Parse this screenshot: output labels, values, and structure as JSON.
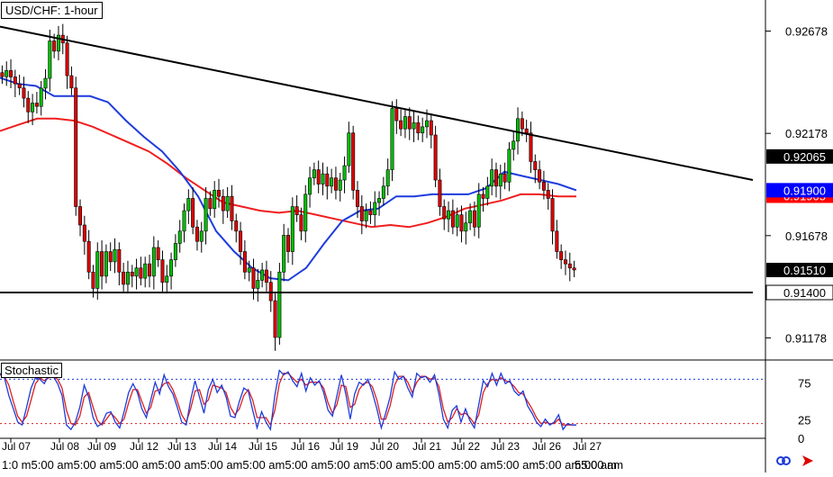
{
  "chart_data": [
    {
      "type": "candlestick",
      "title": "USD/CHF: 1-hour",
      "y_ticks": [
        "0.92678",
        "0.92178",
        "0.91678",
        "0.91178"
      ],
      "price_tags": [
        {
          "label": "0.92065",
          "value": 0.92065,
          "bg": "#000000"
        },
        {
          "label": "0.91905",
          "value": 0.91873,
          "bg": "#ff0000"
        },
        {
          "label": "0.91900",
          "value": 0.919,
          "bg": "#0000ff"
        },
        {
          "label": "0.91510",
          "value": 0.9151,
          "bg": "#000000"
        },
        {
          "label": "0.91400",
          "value": 0.914,
          "bg": "#ffffff"
        }
      ],
      "ylim": [
        0.9107,
        0.9283
      ],
      "x_labels": [
        "Jul 07",
        "Jul 08",
        "Jul 09",
        "Jul 12",
        "Jul 13",
        "Jul 14",
        "Jul 15",
        "Jul 16",
        "Jul 19",
        "Jul 20",
        "Jul 21",
        "Jul 22",
        "Jul 23",
        "Jul 26",
        "Jul 27"
      ],
      "candle_closes": [
        0.92455,
        0.92485,
        0.92454,
        0.9242,
        0.924,
        0.9235,
        0.92283,
        0.92326,
        0.9231,
        0.92399,
        0.92447,
        0.9263,
        0.9258,
        0.92658,
        0.9262,
        0.9246,
        0.924,
        0.9182,
        0.9173,
        0.9165,
        0.915,
        0.9142,
        0.916,
        0.9148,
        0.916,
        0.9155,
        0.9161,
        0.915,
        0.9144,
        0.915,
        0.9148,
        0.9152,
        0.9147,
        0.9154,
        0.9148,
        0.9162,
        0.9156,
        0.9145,
        0.9148,
        0.9156,
        0.9164,
        0.917,
        0.918,
        0.9186,
        0.9172,
        0.9165,
        0.917,
        0.9186,
        0.9181,
        0.919,
        0.9187,
        0.918,
        0.9187,
        0.9175,
        0.917,
        0.916,
        0.915,
        0.9152,
        0.9142,
        0.9146,
        0.9151,
        0.9145,
        0.9136,
        0.9118,
        0.915,
        0.9168,
        0.916,
        0.9182,
        0.9178,
        0.917,
        0.9188,
        0.9196,
        0.92,
        0.9193,
        0.9198,
        0.9192,
        0.9196,
        0.919,
        0.9195,
        0.9202,
        0.9218,
        0.919,
        0.9182,
        0.9175,
        0.918,
        0.9178,
        0.9184,
        0.9186,
        0.9192,
        0.92,
        0.923,
        0.9224,
        0.922,
        0.9226,
        0.922,
        0.9223,
        0.9218,
        0.9221,
        0.9224,
        0.9217,
        0.9195,
        0.9182,
        0.9176,
        0.918,
        0.9172,
        0.9178,
        0.917,
        0.9174,
        0.918,
        0.9172,
        0.9188,
        0.9186,
        0.9192,
        0.92,
        0.9192,
        0.9198,
        0.9194,
        0.921,
        0.9214,
        0.9225,
        0.922,
        0.9218,
        0.9204,
        0.92,
        0.9194,
        0.919,
        0.9186,
        0.917,
        0.916,
        0.9156,
        0.9154,
        0.9152,
        0.9151
      ],
      "ema_blue": [
        0.9245,
        0.9242,
        0.9241,
        0.9236,
        0.9236,
        0.9236,
        0.9233,
        0.9224,
        0.9216,
        0.9209,
        0.9199,
        0.9187,
        0.917,
        0.916,
        0.9152,
        0.9147,
        0.9146,
        0.9152,
        0.9164,
        0.9175,
        0.918,
        0.9181,
        0.9187,
        0.9187,
        0.9188,
        0.9188,
        0.9188,
        0.9191,
        0.9199,
        0.9197,
        0.9195,
        0.9193,
        0.919
      ],
      "ema_red": [
        0.9219,
        0.9222,
        0.9225,
        0.9225,
        0.9224,
        0.9221,
        0.9217,
        0.9213,
        0.9209,
        0.9203,
        0.9196,
        0.919,
        0.9184,
        0.9182,
        0.918,
        0.9179,
        0.918,
        0.9178,
        0.9176,
        0.9174,
        0.9172,
        0.9173,
        0.9172,
        0.9174,
        0.9177,
        0.9181,
        0.9183,
        0.9185,
        0.9188,
        0.9188,
        0.9187,
        0.9187
      ],
      "trendline": [
        [
          0.927,
          0
        ],
        [
          0.9195,
          1
        ]
      ],
      "support": 0.914
    },
    {
      "type": "line",
      "title": "Stochastic",
      "y_ticks": [
        "75",
        "25",
        "0"
      ],
      "levels": [
        80,
        20
      ],
      "ylim": [
        0,
        100
      ],
      "k_values": [
        88,
        82,
        58,
        40,
        22,
        18,
        42,
        68,
        82,
        80,
        74,
        86,
        84,
        74,
        58,
        18,
        12,
        22,
        42,
        72,
        56,
        28,
        16,
        20,
        34,
        36,
        22,
        14,
        36,
        62,
        74,
        62,
        40,
        28,
        52,
        76,
        60,
        86,
        70,
        60,
        42,
        22,
        18,
        52,
        78,
        56,
        34,
        66,
        80,
        62,
        72,
        56,
        30,
        28,
        50,
        68,
        64,
        38,
        14,
        36,
        22,
        12,
        58,
        92,
        86,
        90,
        78,
        70,
        88,
        64,
        82,
        72,
        78,
        62,
        38,
        30,
        58,
        86,
        60,
        26,
        60,
        76,
        72,
        80,
        62,
        40,
        14,
        34,
        56,
        90,
        80,
        84,
        68,
        56,
        88,
        82,
        84,
        76,
        86,
        60,
        26,
        14,
        38,
        44,
        22,
        40,
        24,
        14,
        46,
        78,
        70,
        88,
        72,
        88,
        74,
        78,
        64,
        58,
        64,
        44,
        34,
        22,
        16,
        26,
        18,
        22,
        32,
        12,
        20,
        18,
        18
      ],
      "d_values": [
        86,
        84,
        72,
        50,
        30,
        22,
        30,
        52,
        74,
        82,
        78,
        82,
        84,
        80,
        68,
        38,
        20,
        18,
        30,
        56,
        62,
        42,
        24,
        18,
        26,
        34,
        28,
        20,
        26,
        48,
        66,
        66,
        50,
        34,
        42,
        64,
        66,
        74,
        76,
        66,
        50,
        32,
        22,
        40,
        64,
        66,
        46,
        52,
        72,
        70,
        68,
        62,
        42,
        32,
        40,
        58,
        66,
        52,
        28,
        28,
        28,
        18,
        38,
        74,
        88,
        88,
        82,
        76,
        80,
        72,
        76,
        76,
        76,
        68,
        48,
        34,
        46,
        72,
        70,
        42,
        46,
        66,
        74,
        76,
        70,
        52,
        26,
        26,
        44,
        72,
        84,
        84,
        76,
        62,
        76,
        84,
        84,
        80,
        82,
        70,
        40,
        22,
        28,
        40,
        32,
        34,
        28,
        20,
        32,
        62,
        74,
        80,
        78,
        82,
        78,
        76,
        70,
        62,
        60,
        50,
        40,
        28,
        20,
        22,
        20,
        20,
        26,
        18,
        18,
        18,
        18
      ]
    }
  ],
  "x_axis": {
    "ticks": [
      "Jul 07",
      "Jul 08",
      "Jul 09",
      "Jul 12",
      "Jul 13",
      "Jul 14",
      "Jul 15",
      "Jul 16",
      "Jul 19",
      "Jul 20",
      "Jul 21",
      "Jul 22",
      "Jul 23",
      "Jul 26",
      "Jul 27"
    ],
    "bottom_strip": "1:0  m5:00 am5:00 am5:00 am5:00 am5:00 am5:00 am5:00 am5:00 am5:00 am5:00 am5:00 am5:00 am5:00 am5:00 am",
    "bottom_last": "5:00 am"
  },
  "colors": {
    "bull": "#00aa00",
    "bear": "#cc0000",
    "ema_blue": "#1e3cdc",
    "ema_red": "#f01e1e",
    "stoch_k": "#1e3cdc",
    "stoch_d": "#dc2020"
  },
  "icons": [
    "link-icon",
    "red-arrow-icon"
  ]
}
